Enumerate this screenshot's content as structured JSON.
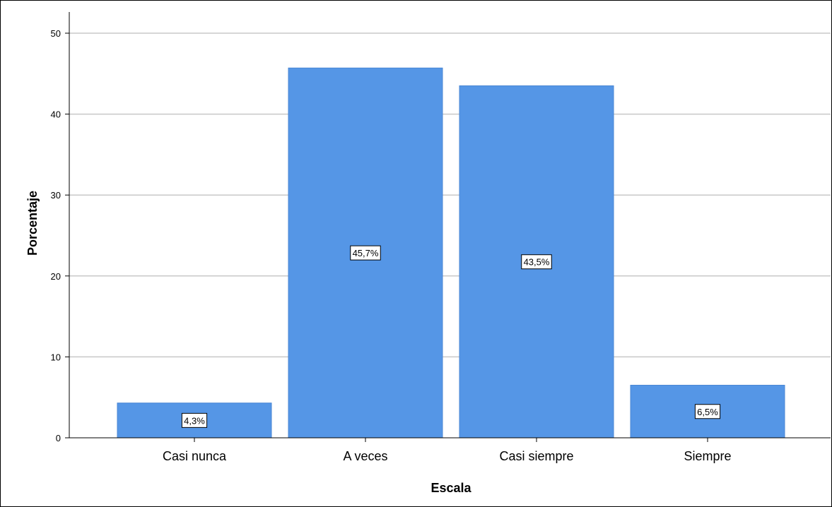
{
  "chart_data": {
    "type": "bar",
    "categories": [
      "Casi nunca",
      "A veces",
      "Casi siempre",
      "Siempre"
    ],
    "values": [
      4.3,
      45.7,
      43.5,
      6.5
    ],
    "data_labels": [
      "4,3%",
      "45,7%",
      "43,5%",
      "6,5%"
    ],
    "xlabel": "Escala",
    "ylabel": "Porcentaje",
    "ylim": [
      0,
      50
    ],
    "yticks": [
      0,
      10,
      20,
      30,
      40,
      50
    ],
    "grid": true,
    "bar_color": "#5596e6"
  }
}
